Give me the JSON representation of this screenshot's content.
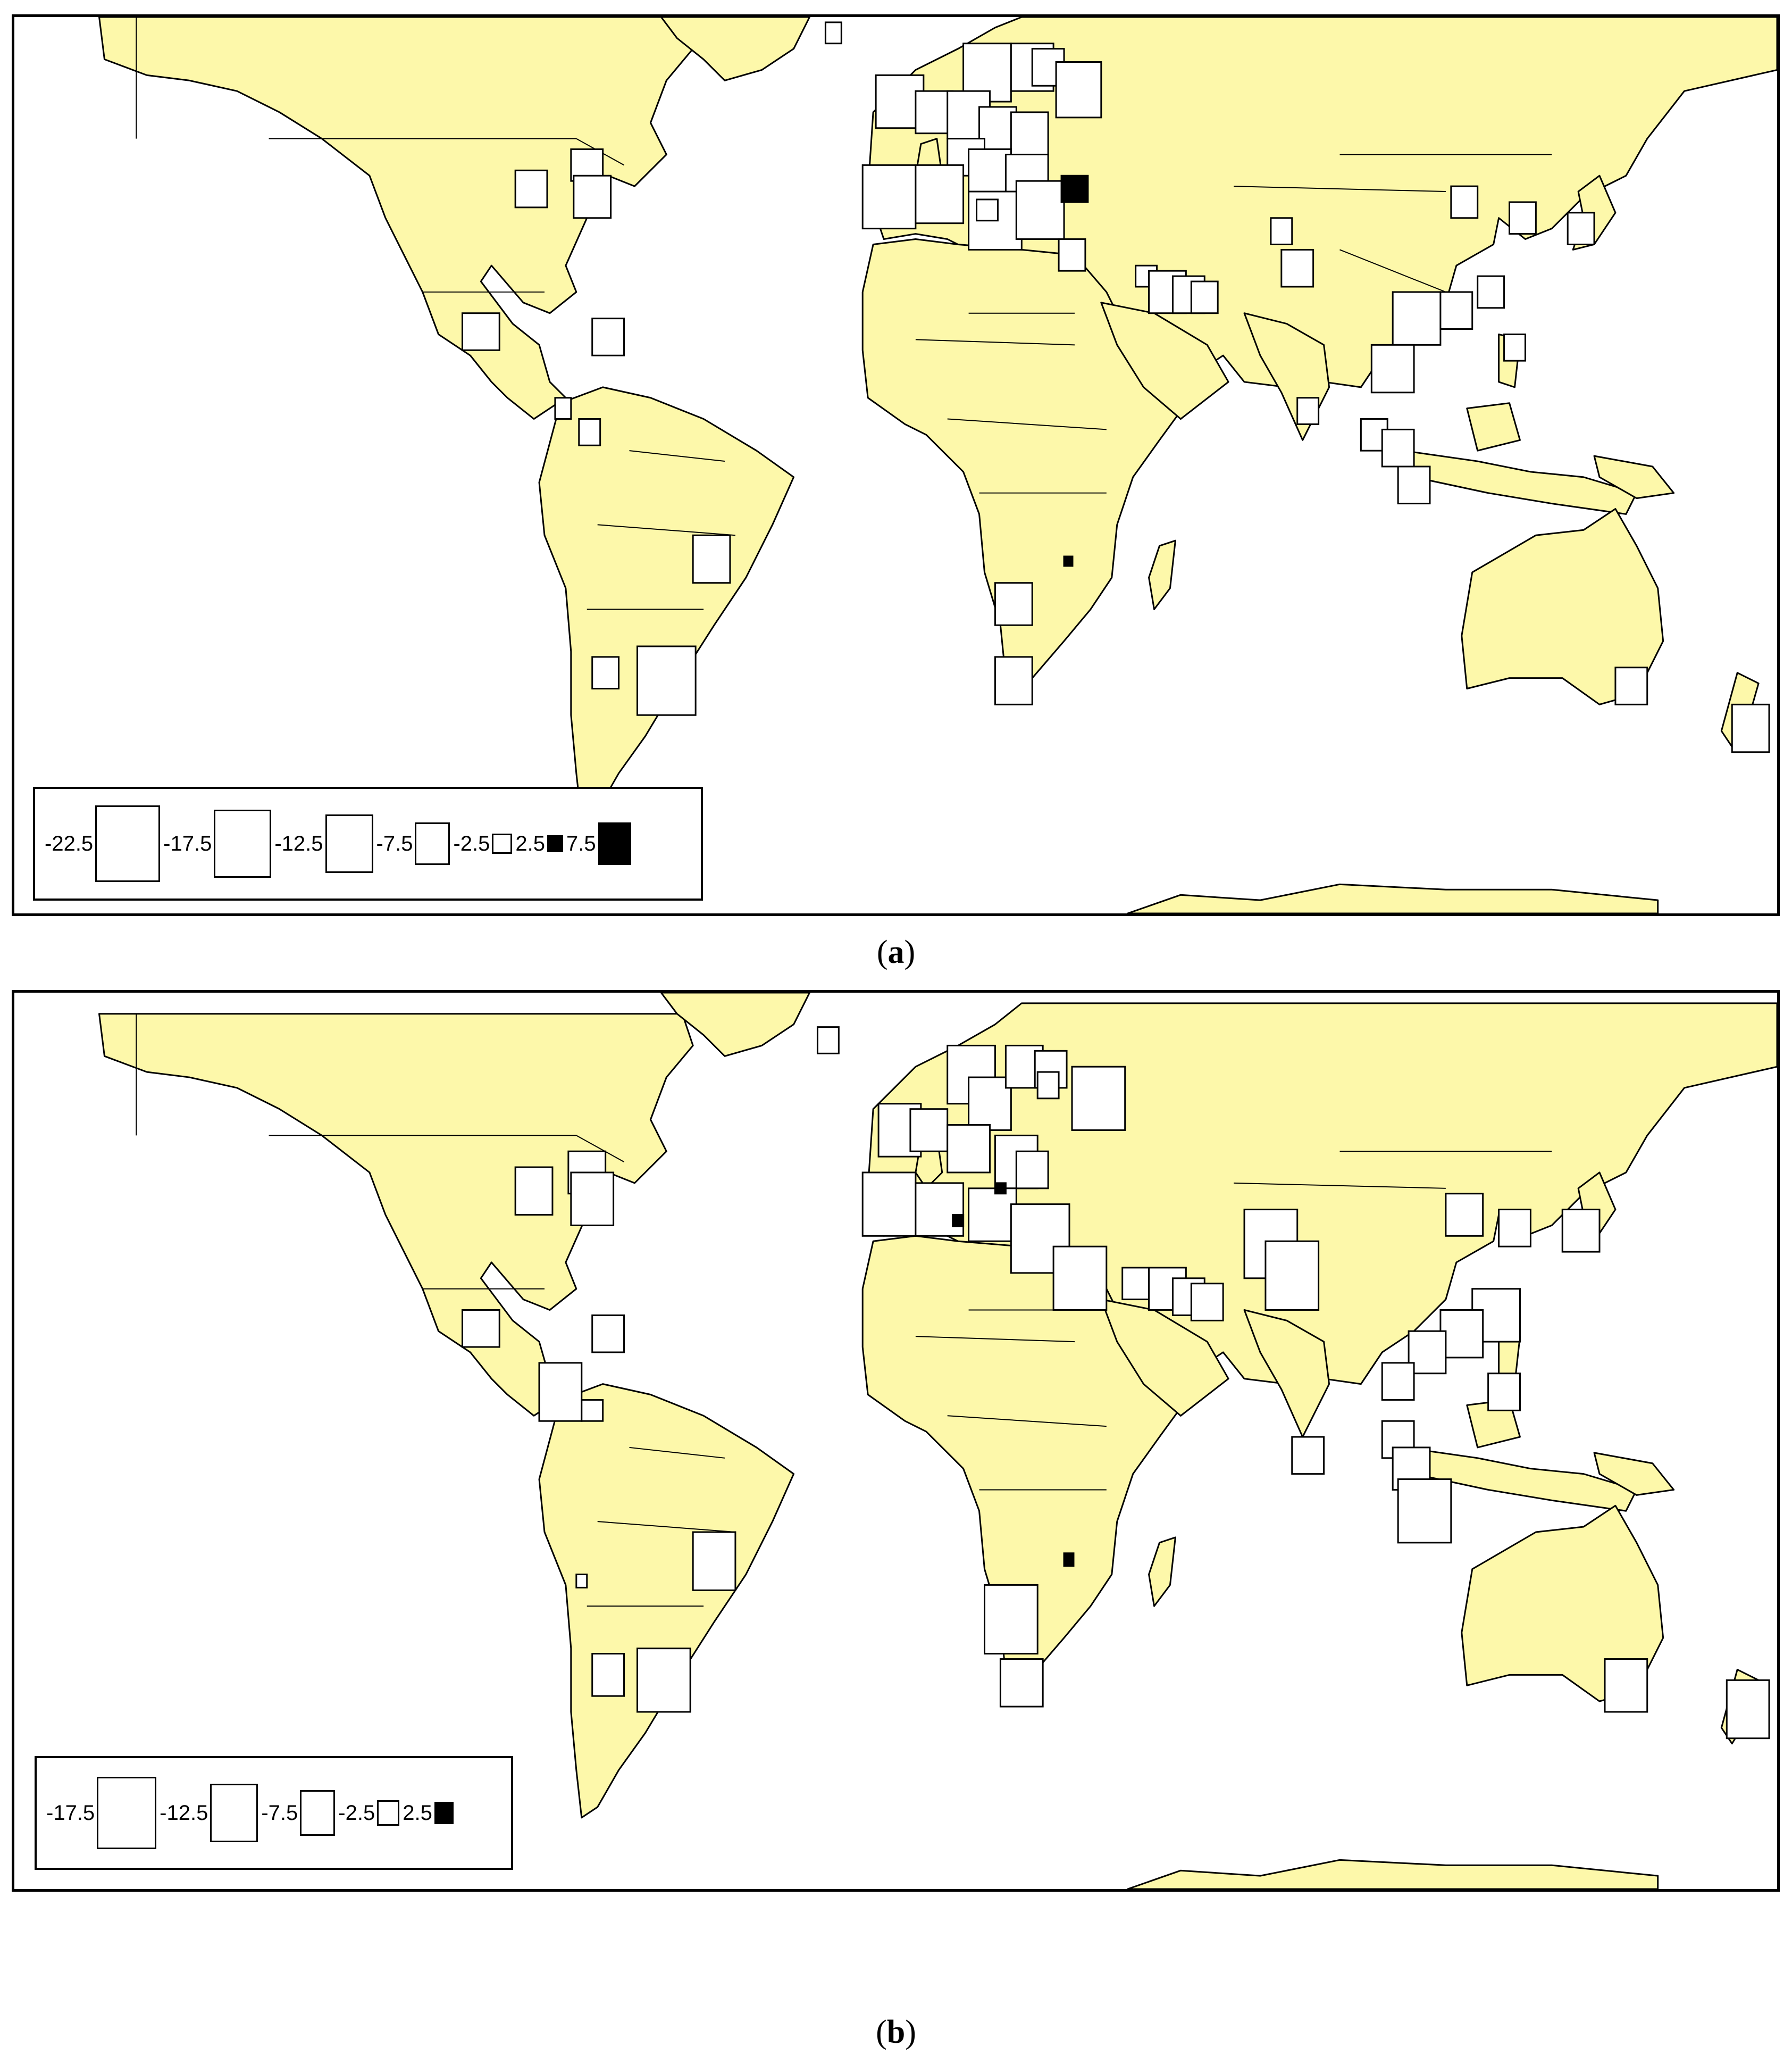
{
  "panels": [
    {
      "id": "a",
      "caption_open": "(",
      "caption_letter": "a",
      "caption_close": ")",
      "legend": [
        {
          "label": "-22.5",
          "value": -22.5
        },
        {
          "label": "-17.5",
          "value": -17.5
        },
        {
          "label": "-12.5",
          "value": -12.5
        },
        {
          "label": "-7.5",
          "value": -7.5
        },
        {
          "label": "-2.5",
          "value": -2.5
        },
        {
          "label": "2.5",
          "value": 2.5
        },
        {
          "label": "7.5",
          "value": 7.5
        }
      ]
    },
    {
      "id": "b",
      "caption_open": "(",
      "caption_letter": "b",
      "caption_close": ")",
      "legend": [
        {
          "label": "-17.5",
          "value": -17.5
        },
        {
          "label": "-12.5",
          "value": -12.5
        },
        {
          "label": "-7.5",
          "value": -7.5
        },
        {
          "label": "-2.5",
          "value": -2.5
        },
        {
          "label": "2.5",
          "value": 2.5
        }
      ]
    }
  ],
  "colors": {
    "land": "#fdf8aa",
    "border": "#000000",
    "negative_symbol": "#ffffff",
    "positive_symbol": "#000000"
  }
}
